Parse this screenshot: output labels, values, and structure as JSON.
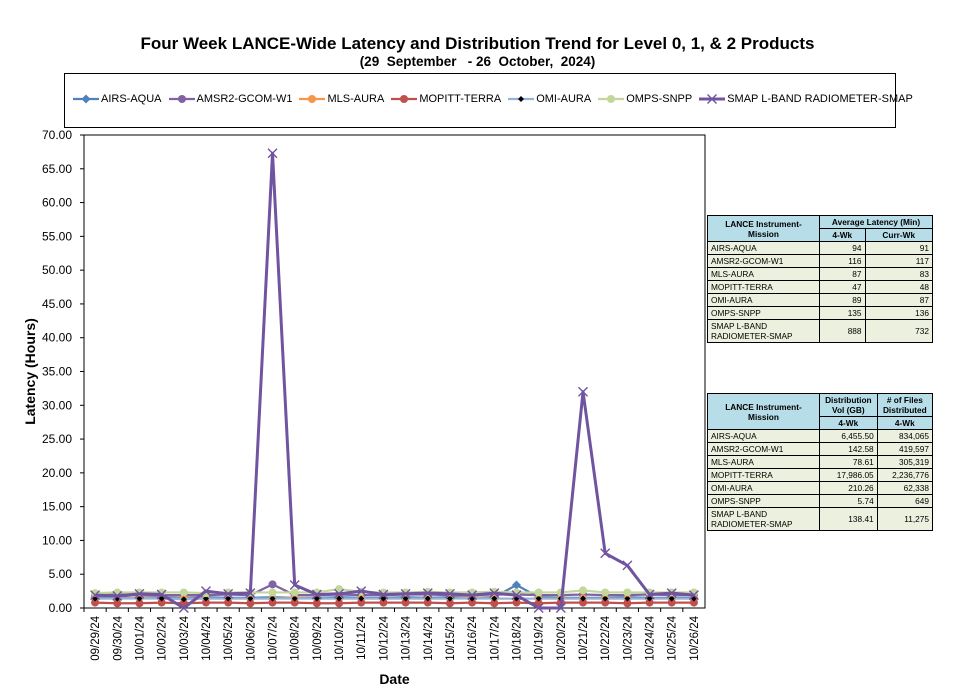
{
  "title": "Four Week LANCE-Wide Latency and Distribution Trend for Level 0, 1, & 2 Products",
  "subtitle": "(29  September   - 26  October,  2024)",
  "chart_data": {
    "type": "line",
    "xlabel": "Date",
    "ylabel": "Latency (Hours)",
    "ylim": [
      0,
      70
    ],
    "yticks": [
      "0.00",
      "5.00",
      "10.00",
      "15.00",
      "20.00",
      "25.00",
      "30.00",
      "35.00",
      "40.00",
      "45.00",
      "50.00",
      "55.00",
      "60.00",
      "65.00",
      "70.00"
    ],
    "grid": false,
    "legend_position": "top",
    "categories": [
      "09/29/24",
      "09/30/24",
      "10/01/24",
      "10/02/24",
      "10/03/24",
      "10/04/24",
      "10/05/24",
      "10/06/24",
      "10/07/24",
      "10/08/24",
      "10/09/24",
      "10/10/24",
      "10/11/24",
      "10/12/24",
      "10/13/24",
      "10/14/24",
      "10/15/24",
      "10/16/24",
      "10/17/24",
      "10/18/24",
      "10/19/24",
      "10/20/24",
      "10/21/24",
      "10/22/24",
      "10/23/24",
      "10/24/24",
      "10/25/24",
      "10/26/24"
    ],
    "series": [
      {
        "name": "AIRS-AQUA",
        "color": "#4f81bd",
        "marker": "diamond",
        "values": [
          1.6,
          1.6,
          1.5,
          1.6,
          1.5,
          1.6,
          1.5,
          1.5,
          1.6,
          1.5,
          1.5,
          1.6,
          1.5,
          1.5,
          1.6,
          1.5,
          1.6,
          1.5,
          1.6,
          3.4,
          1.6,
          1.5,
          1.5,
          1.5,
          1.6,
          1.5,
          1.5,
          1.5
        ]
      },
      {
        "name": "AMSR2-GCOM-W1",
        "color": "#8064a2",
        "marker": "circle",
        "values": [
          1.9,
          2.0,
          1.9,
          1.9,
          1.9,
          1.9,
          2.0,
          1.9,
          3.5,
          1.9,
          1.9,
          2.0,
          1.9,
          1.9,
          2.0,
          2.0,
          1.9,
          1.9,
          2.0,
          2.0,
          1.9,
          1.9,
          2.0,
          1.9,
          1.9,
          2.0,
          1.9,
          1.9
        ]
      },
      {
        "name": "MLS-AURA",
        "color": "#f79646",
        "marker": "circle",
        "values": [
          1.4,
          1.4,
          1.5,
          1.4,
          1.4,
          1.4,
          1.4,
          1.4,
          1.4,
          1.5,
          1.4,
          1.4,
          1.4,
          1.4,
          1.4,
          1.4,
          1.4,
          1.5,
          1.4,
          1.4,
          1.4,
          1.4,
          1.4,
          1.4,
          1.4,
          1.4,
          1.4,
          1.4
        ]
      },
      {
        "name": "MOPITT-TERRA",
        "color": "#c0504d",
        "marker": "circle",
        "values": [
          0.8,
          0.7,
          0.7,
          0.8,
          0.7,
          0.8,
          0.8,
          0.7,
          0.8,
          0.8,
          0.7,
          0.7,
          0.8,
          0.8,
          0.8,
          0.8,
          0.7,
          0.8,
          0.7,
          0.8,
          0.7,
          0.8,
          0.8,
          0.8,
          0.7,
          0.8,
          0.8,
          0.8
        ]
      },
      {
        "name": "OMI-AURA",
        "color": "#95b3d7",
        "marker": "dot",
        "values": [
          1.4,
          1.4,
          1.4,
          1.4,
          1.3,
          1.4,
          1.4,
          1.4,
          1.4,
          1.4,
          1.4,
          1.4,
          1.4,
          1.4,
          1.4,
          1.4,
          1.4,
          1.4,
          1.4,
          1.4,
          1.4,
          1.4,
          1.4,
          1.4,
          1.4,
          1.4,
          1.4,
          1.4
        ]
      },
      {
        "name": "OMPS-SNPP",
        "color": "#c3d69b",
        "marker": "circle",
        "values": [
          2.2,
          2.3,
          2.3,
          2.3,
          2.3,
          2.2,
          2.3,
          2.3,
          2.3,
          2.3,
          2.3,
          2.8,
          2.4,
          2.3,
          2.3,
          2.4,
          2.3,
          2.3,
          2.4,
          2.3,
          2.3,
          2.3,
          2.6,
          2.3,
          2.3,
          2.3,
          2.3,
          2.3
        ]
      },
      {
        "name": "SMAP L-BAND RADIOMETER-SMAP",
        "color": "#7054a0",
        "marker": "x",
        "values": [
          1.9,
          1.8,
          2.1,
          2.0,
          0.0,
          2.5,
          2.1,
          2.2,
          67.3,
          3.4,
          2.0,
          2.1,
          2.5,
          2.0,
          2.1,
          2.2,
          2.1,
          1.9,
          2.2,
          1.9,
          0.0,
          0.0,
          32.0,
          8.1,
          6.3,
          2.0,
          2.2,
          1.9
        ]
      }
    ]
  },
  "latency_table": {
    "header_mission": "LANCE Instrument-Mission",
    "header_avg": "Average Latency (Min)",
    "col_4wk": "4-Wk",
    "col_currwk": "Curr-Wk",
    "rows": [
      {
        "name": "AIRS-AQUA",
        "a": "94",
        "b": "91"
      },
      {
        "name": "AMSR2-GCOM-W1",
        "a": "116",
        "b": "117"
      },
      {
        "name": "MLS-AURA",
        "a": "87",
        "b": "83"
      },
      {
        "name": "MOPITT-TERRA",
        "a": "47",
        "b": "48"
      },
      {
        "name": "OMI-AURA",
        "a": "89",
        "b": "87"
      },
      {
        "name": "OMPS-SNPP",
        "a": "135",
        "b": "136"
      },
      {
        "name": "SMAP L-BAND RADIOMETER-SMAP",
        "a": "888",
        "b": "732"
      }
    ]
  },
  "distribution_table": {
    "header_mission": "LANCE Instrument-Mission",
    "header_vol": "Distribution Vol (GB)",
    "header_files": "# of Files Distributed",
    "col_4wk_a": "4-Wk",
    "col_4wk_b": "4-Wk",
    "rows": [
      {
        "name": "AIRS-AQUA",
        "a": "6,455.50",
        "b": "834,065"
      },
      {
        "name": "AMSR2-GCOM-W1",
        "a": "142.58",
        "b": "419,597"
      },
      {
        "name": "MLS-AURA",
        "a": "78.61",
        "b": "305,319"
      },
      {
        "name": "MOPITT-TERRA",
        "a": "17,986.05",
        "b": "2,236,776"
      },
      {
        "name": "OMI-AURA",
        "a": "210.26",
        "b": "62,338"
      },
      {
        "name": "OMPS-SNPP",
        "a": "5.74",
        "b": "649"
      },
      {
        "name": "SMAP L-BAND RADIOMETER-SMAP",
        "a": "138.41",
        "b": "11,275"
      }
    ]
  }
}
